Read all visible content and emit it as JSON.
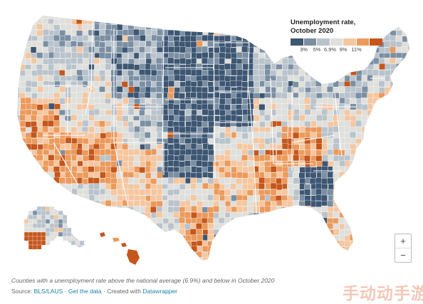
{
  "legend": {
    "title_line1": "Unemployment rate,",
    "title_line2": "October 2020",
    "colors": [
      "#3d5672",
      "#7b8fa3",
      "#b9c3cc",
      "#dfdfdb",
      "#f5c7a0",
      "#eb9a5c",
      "#c5561c"
    ],
    "ticks": [
      "3%",
      "5%",
      "6.9%",
      "9%",
      "11%"
    ]
  },
  "zoom": {
    "in_label": "+",
    "out_label": "−"
  },
  "note": "Counties with a unemployment rate above the national average (6.9%) and below in October 2020",
  "source": {
    "prefix": "Source: ",
    "link_bls": "BLS/LAUS",
    "sep1": " · ",
    "link_data": "Get the data",
    "sep2": " · Created with ",
    "link_tool": "Datawrapper"
  },
  "watermark": "手动动手游",
  "map": {
    "state_lines_color": "#ffffff",
    "base_color": "#c8ced3"
  }
}
